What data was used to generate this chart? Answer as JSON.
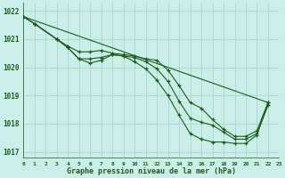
{
  "title": "Graphe pression niveau de la mer (hPa)",
  "bg_color": "#cceee8",
  "grid_color": "#aad4ce",
  "line_color": "#1a5c1a",
  "xlim": [
    0,
    23
  ],
  "ylim": [
    1016.8,
    1022.3
  ],
  "yticks": [
    1017,
    1018,
    1019,
    1020,
    1021,
    1022
  ],
  "xticks": [
    0,
    1,
    2,
    3,
    4,
    5,
    6,
    7,
    8,
    9,
    10,
    11,
    12,
    13,
    14,
    15,
    16,
    17,
    18,
    19,
    20,
    21,
    22,
    23
  ],
  "xtick_labels": [
    "0",
    "1",
    "2",
    "3",
    "4",
    "5",
    "6",
    "7",
    "8",
    "9",
    "10",
    "11",
    "12",
    "13",
    "14",
    "15",
    "16",
    "17",
    "18",
    "19",
    "20",
    "21",
    "22",
    "23"
  ],
  "series_with_markers": [
    {
      "x": [
        0,
        1,
        3,
        4,
        5,
        6,
        7,
        8,
        9,
        10,
        11,
        12,
        13,
        14,
        15,
        16,
        17,
        18,
        19,
        20,
        21,
        22
      ],
      "y": [
        1021.8,
        1021.55,
        1021.0,
        1020.75,
        1020.55,
        1020.55,
        1020.6,
        1020.5,
        1020.45,
        1020.4,
        1020.3,
        1020.25,
        1019.9,
        1019.35,
        1018.75,
        1018.55,
        1018.15,
        1017.8,
        1017.55,
        1017.55,
        1017.75,
        1018.75
      ]
    },
    {
      "x": [
        0,
        1,
        3,
        4,
        5,
        6,
        7,
        8,
        9,
        10,
        11,
        12,
        13,
        14,
        15,
        16,
        17,
        18,
        19,
        20,
        21,
        22
      ],
      "y": [
        1021.8,
        1021.55,
        1021.0,
        1020.7,
        1020.3,
        1020.3,
        1020.35,
        1020.45,
        1020.4,
        1020.35,
        1020.2,
        1019.95,
        1019.5,
        1018.8,
        1018.2,
        1018.05,
        1017.95,
        1017.7,
        1017.45,
        1017.45,
        1017.65,
        1018.65
      ]
    },
    {
      "x": [
        0,
        1,
        3,
        4,
        5,
        6,
        7,
        8,
        9,
        10,
        11,
        12,
        13,
        14,
        15,
        16,
        17,
        18,
        19,
        20,
        21,
        22
      ],
      "y": [
        1021.8,
        1021.55,
        1021.0,
        1020.7,
        1020.3,
        1020.15,
        1020.25,
        1020.45,
        1020.4,
        1020.2,
        1019.95,
        1019.55,
        1019.0,
        1018.3,
        1017.65,
        1017.45,
        1017.35,
        1017.35,
        1017.3,
        1017.3,
        1017.6,
        1018.75
      ]
    }
  ],
  "series_line_only": [
    {
      "x": [
        0,
        22
      ],
      "y": [
        1021.8,
        1018.75
      ]
    }
  ]
}
